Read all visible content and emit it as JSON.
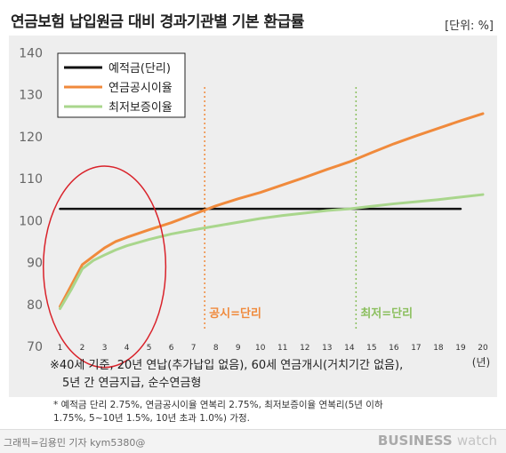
{
  "title": "연금보험 납입원금 대비 경과기관별 기본 환급률",
  "unit": "[단위: %]",
  "notes": [
    "※40세 기준, 20년 연납(추가납입 없음), 60세 연금개시(거치기간 없음),",
    "5년 간 연금지급, 순수연금형",
    "* 예적금 단리 2.75%, 연금공시이율 연복리 2.75%, 최저보증이율 연복리(5년 이하",
    "1.75%, 5~10년 1.5%, 10년 초과 1.0%) 가정."
  ],
  "credit": "그래픽=김용민 기자 kym5380@",
  "logo": {
    "main": "BUSINESS",
    "sub": "watch"
  },
  "colors": {
    "deposit": "#111111",
    "public": "#f08a3c",
    "minimum": "#a9d68c",
    "circle": "#d9222a",
    "panel": "#eeeeee"
  },
  "chart_data": {
    "type": "line",
    "title": "연금보험 납입원금 대비 경과기관별 기본 환급률",
    "xlabel": "(년)",
    "ylabel": "",
    "xlim": [
      0.7,
      20.2
    ],
    "ylim": [
      70,
      142
    ],
    "xticks": [
      1,
      2,
      3,
      4,
      5,
      6,
      7,
      8,
      9,
      10,
      11,
      12,
      13,
      14,
      15,
      16,
      17,
      18,
      19,
      20
    ],
    "yticks": [
      70,
      80,
      90,
      100,
      110,
      120,
      130,
      140
    ],
    "legend_position": "top-left",
    "series": [
      {
        "name": "예적금(단리)",
        "color": "#111111",
        "x": [
          1,
          19
        ],
        "y": [
          102.8,
          102.8
        ]
      },
      {
        "name": "연금공시이율",
        "color": "#f08a3c",
        "x": [
          1,
          1.5,
          2,
          2.5,
          3,
          3.5,
          4,
          5,
          6,
          7,
          7.5,
          8,
          9,
          10,
          11,
          12,
          13,
          14,
          15,
          16,
          17,
          18,
          19,
          20
        ],
        "y": [
          79.5,
          84.5,
          89.5,
          91.5,
          93.5,
          95.0,
          96.0,
          97.8,
          99.5,
          101.5,
          102.5,
          103.5,
          105.2,
          106.7,
          108.5,
          110.3,
          112.2,
          114.0,
          116.2,
          118.3,
          120.2,
          122.0,
          123.8,
          125.5
        ]
      },
      {
        "name": "최저보증이율",
        "color": "#a9d68c",
        "x": [
          1,
          1.5,
          2,
          2.5,
          3,
          3.5,
          4,
          5,
          6,
          7,
          8,
          9,
          10,
          11,
          12,
          13,
          14,
          15,
          16,
          17,
          18,
          19,
          20
        ],
        "y": [
          79.0,
          83.5,
          88.5,
          90.5,
          91.8,
          93.0,
          94.0,
          95.5,
          96.8,
          97.8,
          98.7,
          99.6,
          100.5,
          101.2,
          101.8,
          102.4,
          102.8,
          103.4,
          104.0,
          104.5,
          105.0,
          105.6,
          106.2
        ]
      }
    ],
    "annotations": [
      {
        "label": "공시=단리",
        "x": 7.5,
        "color": "#f08a3c"
      },
      {
        "label": "최저=단리",
        "x": 14.3,
        "color": "#8bbf5e"
      }
    ],
    "highlight": {
      "center_x": 3.0,
      "center_y": 89,
      "rx_years": 2.75,
      "ry_units": 24
    }
  }
}
